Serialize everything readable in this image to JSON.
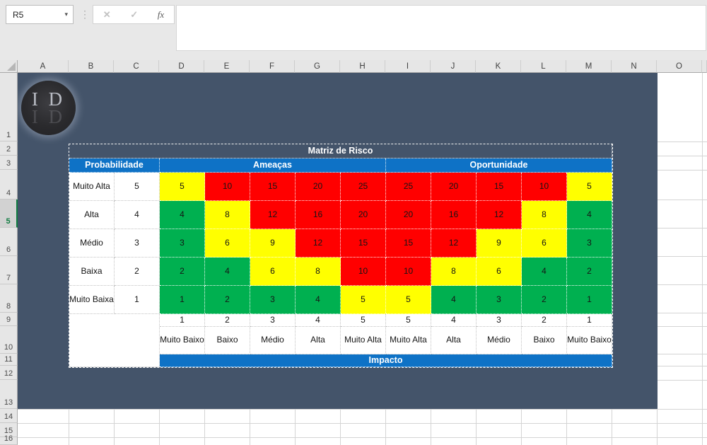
{
  "excel": {
    "name_box_value": "R5",
    "formula_bar_value": "",
    "icons": {
      "cancel": "✕",
      "enter": "✓",
      "function": "fx",
      "name_box_dropdown": "▾",
      "separator": "⋮"
    },
    "column_headers": [
      "A",
      "B",
      "C",
      "D",
      "E",
      "F",
      "G",
      "H",
      "I",
      "J",
      "K",
      "L",
      "M",
      "N",
      "O"
    ],
    "row_headers": [
      "1",
      "2",
      "3",
      "4",
      "5",
      "6",
      "7",
      "8",
      "9",
      "10",
      "11",
      "12",
      "13",
      "14",
      "15",
      "16"
    ],
    "selected_row": "5",
    "selection_accent": "#107C41"
  },
  "logo": {
    "initials": "I D"
  },
  "matrix": {
    "title": "Matriz de Risco",
    "probability_header": "Probabilidade",
    "threats_header": "Ameaças",
    "opportunity_header": "Oportunidade",
    "impact_header": "Impacto",
    "colors": {
      "red": "#FF0000",
      "yellow": "#FFFF00",
      "green": "#00B050",
      "header_blue": "#0E72C6",
      "title_slate": "#44546A"
    },
    "probability_rows": [
      {
        "label": "Muito Alta",
        "level": "5",
        "cells": [
          {
            "value": "5",
            "color": "yellow"
          },
          {
            "value": "10",
            "color": "red"
          },
          {
            "value": "15",
            "color": "red"
          },
          {
            "value": "20",
            "color": "red"
          },
          {
            "value": "25",
            "color": "red"
          },
          {
            "value": "25",
            "color": "red"
          },
          {
            "value": "20",
            "color": "red"
          },
          {
            "value": "15",
            "color": "red"
          },
          {
            "value": "10",
            "color": "red"
          },
          {
            "value": "5",
            "color": "yellow"
          }
        ]
      },
      {
        "label": "Alta",
        "level": "4",
        "cells": [
          {
            "value": "4",
            "color": "green"
          },
          {
            "value": "8",
            "color": "yellow"
          },
          {
            "value": "12",
            "color": "red"
          },
          {
            "value": "16",
            "color": "red"
          },
          {
            "value": "20",
            "color": "red"
          },
          {
            "value": "20",
            "color": "red"
          },
          {
            "value": "16",
            "color": "red"
          },
          {
            "value": "12",
            "color": "red"
          },
          {
            "value": "8",
            "color": "yellow"
          },
          {
            "value": "4",
            "color": "green"
          }
        ]
      },
      {
        "label": "Médio",
        "level": "3",
        "cells": [
          {
            "value": "3",
            "color": "green"
          },
          {
            "value": "6",
            "color": "yellow"
          },
          {
            "value": "9",
            "color": "yellow"
          },
          {
            "value": "12",
            "color": "red"
          },
          {
            "value": "15",
            "color": "red"
          },
          {
            "value": "15",
            "color": "red"
          },
          {
            "value": "12",
            "color": "red"
          },
          {
            "value": "9",
            "color": "yellow"
          },
          {
            "value": "6",
            "color": "yellow"
          },
          {
            "value": "3",
            "color": "green"
          }
        ]
      },
      {
        "label": "Baixa",
        "level": "2",
        "cells": [
          {
            "value": "2",
            "color": "green"
          },
          {
            "value": "4",
            "color": "green"
          },
          {
            "value": "6",
            "color": "yellow"
          },
          {
            "value": "8",
            "color": "yellow"
          },
          {
            "value": "10",
            "color": "red"
          },
          {
            "value": "10",
            "color": "red"
          },
          {
            "value": "8",
            "color": "yellow"
          },
          {
            "value": "6",
            "color": "yellow"
          },
          {
            "value": "4",
            "color": "green"
          },
          {
            "value": "2",
            "color": "green"
          }
        ]
      },
      {
        "label": "Muito Baixa",
        "level": "1",
        "cells": [
          {
            "value": "1",
            "color": "green"
          },
          {
            "value": "2",
            "color": "green"
          },
          {
            "value": "3",
            "color": "green"
          },
          {
            "value": "4",
            "color": "green"
          },
          {
            "value": "5",
            "color": "yellow"
          },
          {
            "value": "5",
            "color": "yellow"
          },
          {
            "value": "4",
            "color": "green"
          },
          {
            "value": "3",
            "color": "green"
          },
          {
            "value": "2",
            "color": "green"
          },
          {
            "value": "1",
            "color": "green"
          }
        ]
      }
    ],
    "impact_scale_numbers": [
      "1",
      "2",
      "3",
      "4",
      "5",
      "5",
      "4",
      "3",
      "2",
      "1"
    ],
    "impact_scale_labels": [
      "Muito Baixo",
      "Baixo",
      "Médio",
      "Alta",
      "Muito Alta",
      "Muito Alta",
      "Alta",
      "Médio",
      "Baixo",
      "Muito Baixo"
    ]
  }
}
